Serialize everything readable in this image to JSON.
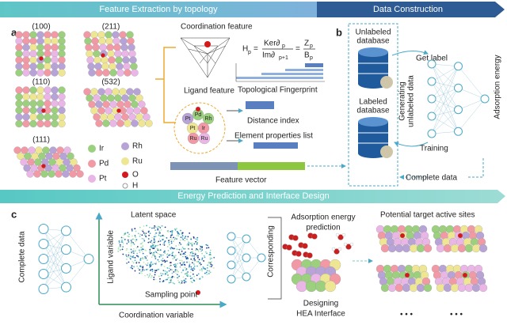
{
  "banner_top": {
    "left": "Feature Extraction by topology",
    "right": "Data Construction"
  },
  "banner_mid": "Energy Prediction and Interface Design",
  "panel_labels": [
    "a",
    "b",
    "c"
  ],
  "facets": [
    "(100)",
    "(211)",
    "(110)",
    "(532)",
    "(111)"
  ],
  "legend": [
    "Ir",
    "Rh",
    "Pd",
    "Ru",
    "Pt",
    "O",
    "H"
  ],
  "feature": {
    "coordination": "Coordination feature",
    "ligand": "Ligand feature",
    "formula": [
      "H",
      "p",
      "=",
      "Ker∂",
      "p",
      "Im∂",
      "p+1",
      "=",
      "Z",
      "p",
      "B",
      "p"
    ],
    "fingerprint": "Topological Fingerprint",
    "cluster_atoms": [
      "Pt",
      "Pd",
      "Rh",
      "Pt",
      "Ir",
      "Ru",
      "Ru"
    ],
    "distance": "Distance index",
    "element": "Element properties list",
    "vector": "Feature vector"
  },
  "data_construction": {
    "unlabeled": [
      "Unlabeled",
      "database"
    ],
    "labeled": [
      "Labeled",
      "database"
    ],
    "get_label": "Get label",
    "generating": [
      "Generating",
      "unlabeled data"
    ],
    "training": "Training",
    "adsorption": "Adsorption energy",
    "complete": "Complete data"
  },
  "prediction": {
    "complete": "Complete data",
    "latent": "Latent space",
    "ligand_var": "Ligand variable",
    "sampling": "Sampling point",
    "coord_var": "Coordination variable",
    "corresponding": "Corresponding",
    "adsorption": [
      "Adsorption energy",
      "prediction"
    ],
    "designing": [
      "Designing",
      "HEA Interface"
    ],
    "targets": "Potential target active sites",
    "ellipsis": [
      "• • •",
      "• • •"
    ]
  }
}
